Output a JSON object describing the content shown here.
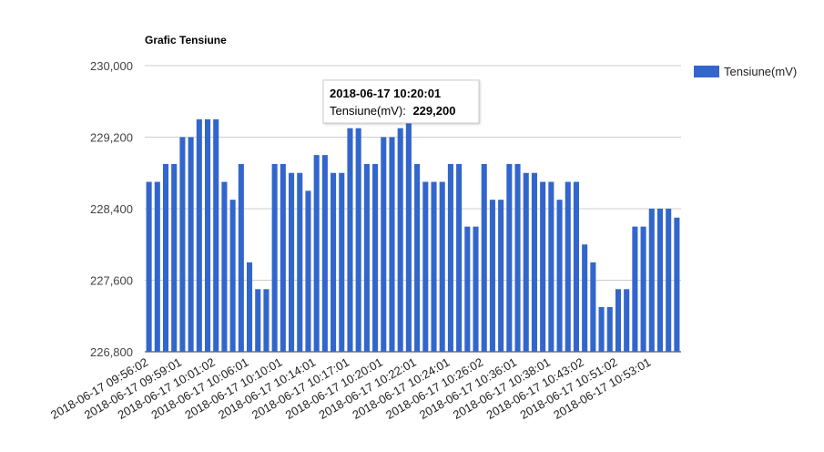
{
  "chart_data": {
    "type": "bar",
    "title": "Grafic Tensiune",
    "legend": {
      "position": "right",
      "label": "Tensiune(mV)"
    },
    "color": "#3366cc",
    "ylim": [
      226800,
      230000
    ],
    "yticks": [
      "230,000",
      "229,200",
      "228,400",
      "227,600",
      "226,800"
    ],
    "ytick_values": [
      230000,
      229200,
      228400,
      227600,
      226800
    ],
    "xtick_labels": [
      "2018-06-17 09:56:02",
      "2018-06-17 09:59:01",
      "2018-06-17 10:01:02",
      "2018-06-17 10:06:01",
      "2018-06-17 10:10:01",
      "2018-06-17 10:14:01",
      "2018-06-17 10:17:01",
      "2018-06-17 10:20:01",
      "2018-06-17 10:22:01",
      "2018-06-17 10:24:01",
      "2018-06-17 10:26:02",
      "2018-06-17 10:36:01",
      "2018-06-17 10:38:01",
      "2018-06-17 10:43:02",
      "2018-06-17 10:51:02",
      "2018-06-17 10:53:01"
    ],
    "series": [
      {
        "name": "Tensiune(mV)",
        "values": [
          228700,
          228700,
          228900,
          228900,
          229200,
          229200,
          229400,
          229400,
          229400,
          228700,
          228500,
          228900,
          227800,
          227500,
          227500,
          228900,
          228900,
          228800,
          228800,
          228600,
          229000,
          229000,
          228800,
          228800,
          229300,
          229300,
          228900,
          228900,
          229200,
          229200,
          229300,
          229400,
          228900,
          228700,
          228700,
          228700,
          228900,
          228900,
          228200,
          228200,
          228900,
          228500,
          228500,
          228900,
          228900,
          228800,
          228800,
          228700,
          228700,
          228500,
          228700,
          228700,
          228000,
          227800,
          227300,
          227300,
          227500,
          227500,
          228200,
          228200,
          228400,
          228400,
          228400,
          228300
        ]
      }
    ],
    "tooltip": {
      "title": "2018-06-17 10:20:01",
      "label": "Tensiune(mV):",
      "value": "229,200"
    }
  }
}
